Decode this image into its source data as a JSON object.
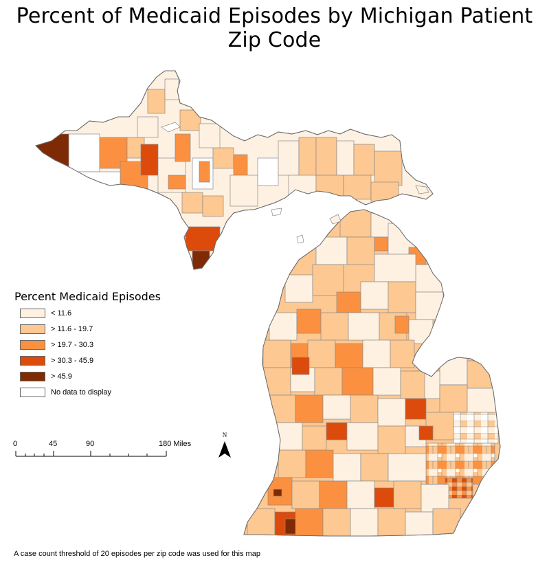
{
  "title": "Percent of Medicaid Episodes by Michigan Patient Zip Code",
  "legend": {
    "title": "Percent Medicaid Episodes",
    "items": [
      {
        "label": "< 11.6",
        "color": "#fef1e2"
      },
      {
        "label": "> 11.6 - 19.7",
        "color": "#fdc891"
      },
      {
        "label": "> 19.7 - 30.3",
        "color": "#fb9140"
      },
      {
        "label": "> 30.3 - 45.9",
        "color": "#dc4b0b"
      },
      {
        "label": "> 45.9",
        "color": "#7e2a05"
      },
      {
        "label": "No data to display",
        "color": "#ffffff"
      }
    ]
  },
  "scale_bar": {
    "labels": [
      "0",
      "45",
      "90",
      "180 Miles"
    ]
  },
  "north_arrow": {
    "label": "N"
  },
  "footnote": "A case count threshold of 20 episodes per zip code was used for this map",
  "colors": {
    "boundary": "#8a8a8a",
    "outline": "#6e6e6e"
  }
}
